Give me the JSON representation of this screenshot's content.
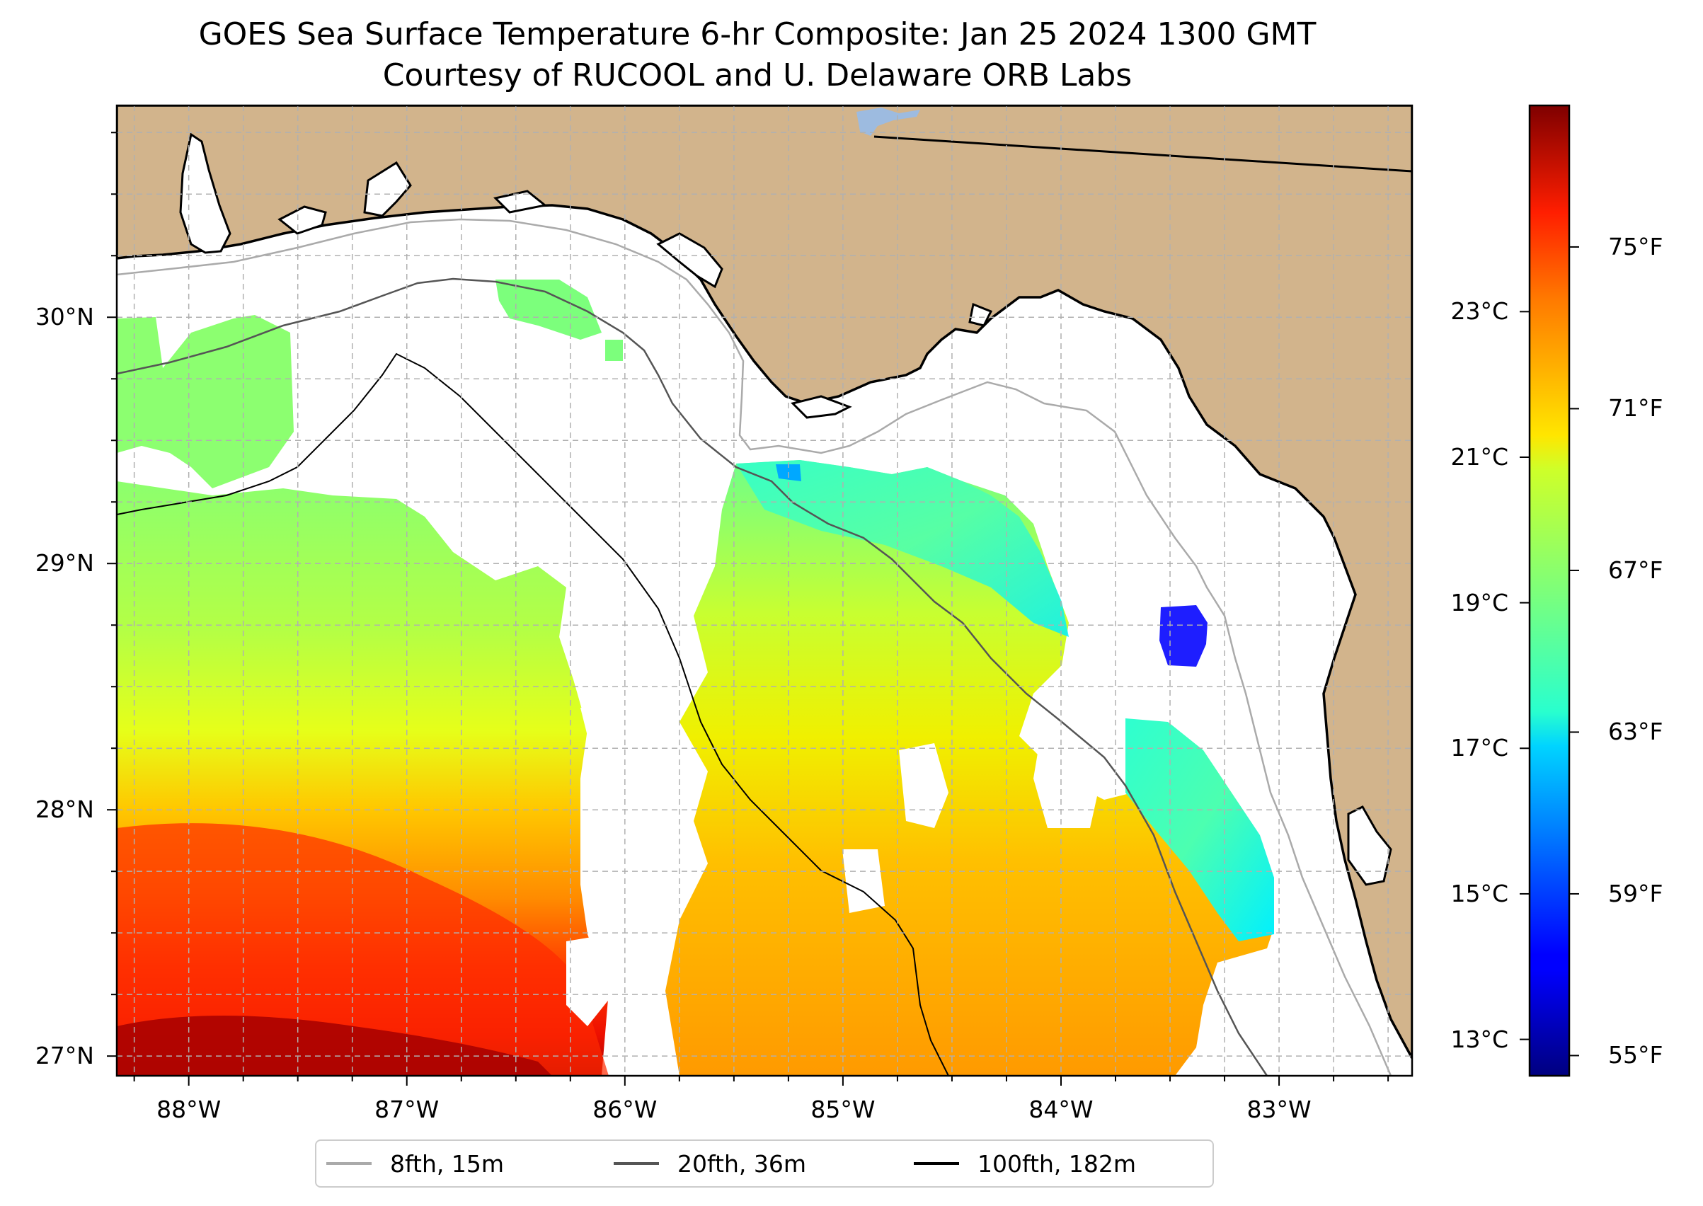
{
  "title": {
    "line1": "GOES Sea Surface Temperature 6-hr Composite: Jan 25 2024 1300 GMT",
    "line2": "Courtesy of RUCOOL and U. Delaware ORB Labs"
  },
  "map": {
    "extent": {
      "lon_min": -88.33,
      "lon_max": -82.39,
      "lat_min": 26.92,
      "lat_max": 30.86
    },
    "colors": {
      "land": "#D2B48C",
      "no_data": "#FFFFFF",
      "coast": "#000000",
      "lake": "#9DBBE0",
      "grid": "#B0B0B0"
    },
    "lon_ticks": [
      {
        "value": -88,
        "label": "88°W"
      },
      {
        "value": -87,
        "label": "87°W"
      },
      {
        "value": -86,
        "label": "86°W"
      },
      {
        "value": -85,
        "label": "85°W"
      },
      {
        "value": -84,
        "label": "84°W"
      },
      {
        "value": -83,
        "label": "83°W"
      }
    ],
    "lat_ticks": [
      {
        "value": 30,
        "label": "30°N"
      },
      {
        "value": 29,
        "label": "29°N"
      },
      {
        "value": 28,
        "label": "28°N"
      },
      {
        "value": 27,
        "label": "27°N"
      }
    ]
  },
  "colorbar": {
    "colormap": "jet",
    "range_f": [
      54.5,
      78.5
    ],
    "celsius_ticks": [
      {
        "value": 23,
        "label": "23°C"
      },
      {
        "value": 21,
        "label": "21°C"
      },
      {
        "value": 19,
        "label": "19°C"
      },
      {
        "value": 17,
        "label": "17°C"
      },
      {
        "value": 15,
        "label": "15°C"
      },
      {
        "value": 13,
        "label": "13°C"
      }
    ],
    "fahrenheit_ticks": [
      {
        "value": 75,
        "label": "75°F"
      },
      {
        "value": 71,
        "label": "71°F"
      },
      {
        "value": 67,
        "label": "67°F"
      },
      {
        "value": 63,
        "label": "63°F"
      },
      {
        "value": 59,
        "label": "59°F"
      },
      {
        "value": 55,
        "label": "55°F"
      }
    ]
  },
  "legend": {
    "items": [
      {
        "label": "8fth, 15m",
        "color": "#AAAAAA"
      },
      {
        "label": "20fth, 36m",
        "color": "#555555"
      },
      {
        "label": "100fth, 182m",
        "color": "#000000"
      }
    ]
  }
}
